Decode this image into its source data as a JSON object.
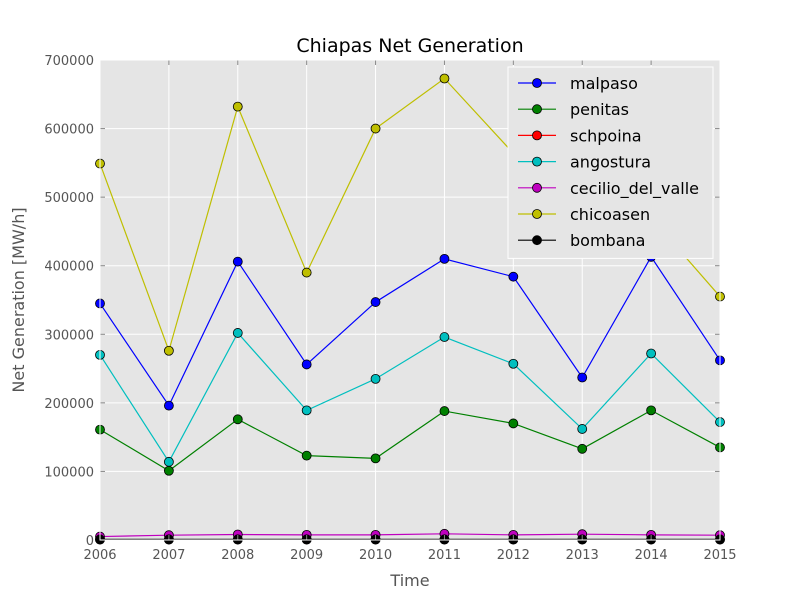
{
  "chart_data": {
    "type": "line",
    "title": "Chiapas Net Generation",
    "xlabel": "Time",
    "ylabel": "Net Generation [MW/h]",
    "x": [
      2006,
      2007,
      2008,
      2009,
      2010,
      2011,
      2012,
      2013,
      2014,
      2015
    ],
    "xlim": [
      2006,
      2015
    ],
    "ylim": [
      0,
      700000
    ],
    "xticks": [
      "2006",
      "2007",
      "2008",
      "2009",
      "2010",
      "2011",
      "2012",
      "2013",
      "2014",
      "2015"
    ],
    "yticks": [
      "0",
      "100000",
      "200000",
      "300000",
      "400000",
      "500000",
      "600000",
      "700000"
    ],
    "grid": true,
    "legend_position": "top-right",
    "series": [
      {
        "name": "malpaso",
        "color": "#0000ff",
        "values": [
          345000,
          196000,
          406000,
          256000,
          347000,
          410000,
          384000,
          237000,
          413000,
          262000
        ]
      },
      {
        "name": "penitas",
        "color": "#008000",
        "values": [
          161000,
          101000,
          176000,
          123000,
          119000,
          188000,
          170000,
          133000,
          189000,
          135000
        ]
      },
      {
        "name": "schpoina",
        "color": "#ff0000",
        "values": [
          500,
          500,
          500,
          500,
          500,
          500,
          500,
          500,
          500,
          500
        ]
      },
      {
        "name": "angostura",
        "color": "#00bfbf",
        "values": [
          270000,
          114000,
          302000,
          189000,
          235000,
          296000,
          257000,
          162000,
          272000,
          172000
        ]
      },
      {
        "name": "cecilio_del_valle",
        "color": "#bf00bf",
        "values": [
          5000,
          7000,
          8000,
          7500,
          7500,
          9000,
          7500,
          8500,
          7500,
          7000
        ]
      },
      {
        "name": "chicoasen",
        "color": "#bfbf00",
        "values": [
          549000,
          276000,
          632000,
          390000,
          600000,
          673000,
          564000,
          560000,
          470000,
          355000
        ]
      },
      {
        "name": "bombana",
        "color": "#000000",
        "values": [
          1000,
          1000,
          1000,
          1000,
          1000,
          1000,
          1000,
          1000,
          1000,
          1000
        ]
      }
    ]
  }
}
